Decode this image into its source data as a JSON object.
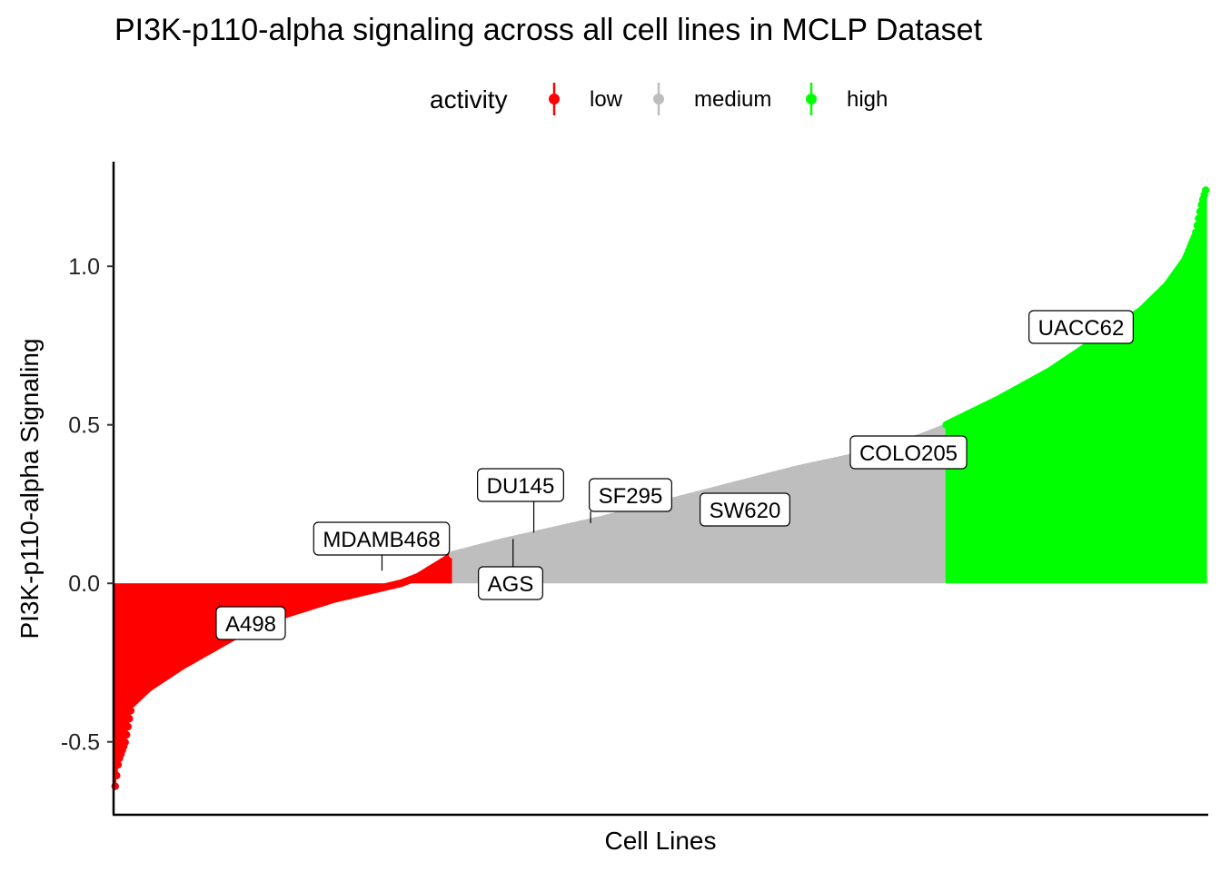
{
  "chart_data": {
    "type": "bar",
    "title": "PI3K-p110-alpha signaling across all cell lines in MCLP Dataset",
    "xlabel": "Cell Lines",
    "ylabel": "PI3K-p110-alpha Signaling",
    "ylim": [
      -0.73,
      1.33
    ],
    "yticks": [
      -0.5,
      0.0,
      0.5,
      1.0
    ],
    "ytick_labels": [
      "-0.5",
      "0.0",
      "0.5",
      "1.0"
    ],
    "grid": false,
    "legend": {
      "title": "activity",
      "position": "top",
      "entries": [
        {
          "label": "low",
          "color": "#FF0000"
        },
        {
          "label": "medium",
          "color": "#BEBEBE"
        },
        {
          "label": "high",
          "color": "#00FF00"
        }
      ]
    },
    "series": [
      {
        "name": "low",
        "color": "#FF0000",
        "n": 238,
        "profile": [
          [
            0,
            -0.64
          ],
          [
            0.01,
            -0.56
          ],
          [
            0.03,
            -0.5
          ],
          [
            0.05,
            -0.38
          ],
          [
            0.1,
            -0.33
          ],
          [
            0.2,
            -0.26
          ],
          [
            0.35,
            -0.17
          ],
          [
            0.5,
            -0.1
          ],
          [
            0.65,
            -0.05
          ],
          [
            0.75,
            -0.025
          ],
          [
            0.85,
            0.0
          ],
          [
            0.9,
            0.02
          ],
          [
            1.0,
            0.085
          ]
        ]
      },
      {
        "name": "medium",
        "color": "#BEBEBE",
        "n": 348,
        "profile": [
          [
            0,
            0.09
          ],
          [
            0.1,
            0.13
          ],
          [
            0.3,
            0.2
          ],
          [
            0.5,
            0.28
          ],
          [
            0.7,
            0.36
          ],
          [
            0.85,
            0.41
          ],
          [
            0.95,
            0.46
          ],
          [
            1.0,
            0.49
          ]
        ]
      },
      {
        "name": "high",
        "color": "#00FF00",
        "n": 184,
        "profile": [
          [
            0,
            0.5
          ],
          [
            0.2,
            0.58
          ],
          [
            0.4,
            0.67
          ],
          [
            0.6,
            0.78
          ],
          [
            0.75,
            0.86
          ],
          [
            0.85,
            0.94
          ],
          [
            0.92,
            1.02
          ],
          [
            0.96,
            1.1
          ],
          [
            0.985,
            1.2
          ],
          [
            1.0,
            1.24
          ]
        ]
      }
    ],
    "annotations": [
      {
        "label": "A498",
        "x_frac": 0.096,
        "y": -0.06
      },
      {
        "label": "MDAMB468",
        "x_frac": 0.245,
        "y": 0.04
      },
      {
        "label": "AGS",
        "x_frac": 0.365,
        "y": 0.14
      },
      {
        "label": "DU145",
        "x_frac": 0.384,
        "y": 0.16
      },
      {
        "label": "SF295",
        "x_frac": 0.436,
        "y": 0.19
      },
      {
        "label": "SW620",
        "x_frac": 0.538,
        "y": 0.24
      },
      {
        "label": "COLO205",
        "x_frac": 0.69,
        "y": 0.37
      },
      {
        "label": "UACC62",
        "x_frac": 0.935,
        "y": 0.86
      }
    ]
  }
}
